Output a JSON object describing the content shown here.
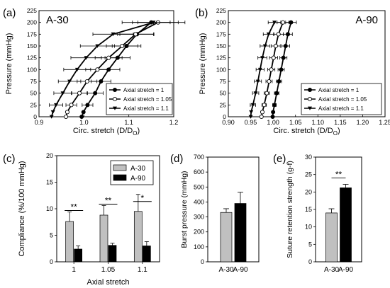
{
  "chart_data": [
    {
      "panel": "(a)",
      "type": "scatter",
      "title": "A-30",
      "xlabel": "Circ. stretch (D/D",
      "xlabel_sub": "O",
      "xlabel_close": ")",
      "ylabel": "Pressure (mmHg)",
      "xlim": [
        0.9,
        1.2
      ],
      "ylim": [
        0,
        225
      ],
      "xticks": [
        "0.9",
        "1.0",
        "1.1",
        "1.2"
      ],
      "yticks": [
        "0",
        "25",
        "50",
        "75",
        "100",
        "125",
        "150",
        "175",
        "200",
        "225"
      ],
      "legend_position": "bottom-right",
      "series": [
        {
          "name": "Axial stretch = 1",
          "marker": "filled-circle",
          "points": [
            [
              0.995,
              0
            ],
            [
              0.999,
              10
            ],
            [
              1.008,
              25
            ],
            [
              1.025,
              50
            ],
            [
              1.038,
              75
            ],
            [
              1.055,
              100
            ],
            [
              1.075,
              125
            ],
            [
              1.095,
              150
            ],
            [
              1.118,
              175
            ],
            [
              1.15,
              200
            ]
          ],
          "xerr": [
            0,
            0,
            0.012,
            0.018,
            0.022,
            0.025,
            0.028,
            0.032,
            0.038,
            0.042
          ]
        },
        {
          "name": "Axial stretch = 1.05",
          "marker": "open-circle",
          "points": [
            [
              0.96,
              0
            ],
            [
              0.963,
              10
            ],
            [
              0.972,
              25
            ],
            [
              0.99,
              50
            ],
            [
              1.007,
              75
            ],
            [
              1.03,
              100
            ],
            [
              1.055,
              125
            ],
            [
              1.085,
              150
            ],
            [
              1.115,
              175
            ],
            [
              1.165,
              200
            ]
          ],
          "xerr": [
            0,
            0,
            0.012,
            0.018,
            0.022,
            0.026,
            0.03,
            0.035,
            0.04,
            0.045
          ]
        },
        {
          "name": "Axial stretch = 1.1",
          "marker": "filled-triangle-down",
          "points": [
            [
              0.928,
              0
            ],
            [
              0.931,
              10
            ],
            [
              0.938,
              25
            ],
            [
              0.953,
              50
            ],
            [
              0.968,
              75
            ],
            [
              0.985,
              100
            ],
            [
              1.005,
              125
            ],
            [
              1.03,
              150
            ],
            [
              1.065,
              175
            ],
            [
              1.155,
              200
            ]
          ],
          "xerr": [
            0,
            0,
            0.015,
            0.02,
            0.025,
            0.03,
            0.034,
            0.038,
            0.045,
            0.07
          ]
        }
      ]
    },
    {
      "panel": "(b)",
      "type": "scatter",
      "title": "A-90",
      "xlabel": "Circ. stretch (D/D",
      "xlabel_sub": "O",
      "xlabel_close": ")",
      "ylabel": "Pressure (mmHg)",
      "xlim": [
        0.9,
        1.25
      ],
      "ylim": [
        0,
        225
      ],
      "xticks": [
        "0.90",
        "0.95",
        "1.00",
        "1.05",
        "1.10",
        "1.15",
        "1.20",
        "1.25"
      ],
      "yticks": [
        "0",
        "25",
        "50",
        "75",
        "100",
        "125",
        "150",
        "175",
        "200",
        "225"
      ],
      "legend_position": "bottom-right",
      "series": [
        {
          "name": "Axial stretch = 1",
          "marker": "filled-circle",
          "points": [
            [
              0.999,
              0
            ],
            [
              1.0,
              10
            ],
            [
              1.003,
              25
            ],
            [
              1.008,
              50
            ],
            [
              1.013,
              75
            ],
            [
              1.018,
              100
            ],
            [
              1.023,
              125
            ],
            [
              1.028,
              150
            ],
            [
              1.033,
              175
            ],
            [
              1.04,
              200
            ]
          ],
          "xerr": [
            0,
            0,
            0.004,
            0.005,
            0.006,
            0.007,
            0.008,
            0.009,
            0.01,
            0.012
          ]
        },
        {
          "name": "Axial stretch = 1.05",
          "marker": "open-circle",
          "points": [
            [
              0.974,
              0
            ],
            [
              0.976,
              10
            ],
            [
              0.98,
              25
            ],
            [
              0.986,
              50
            ],
            [
              0.991,
              75
            ],
            [
              0.996,
              100
            ],
            [
              1.001,
              125
            ],
            [
              1.006,
              150
            ],
            [
              1.012,
              175
            ],
            [
              1.022,
              200
            ]
          ],
          "xerr": [
            0,
            0,
            0.005,
            0.006,
            0.007,
            0.008,
            0.009,
            0.01,
            0.011,
            0.013
          ]
        },
        {
          "name": "Axial stretch = 1.1",
          "marker": "filled-triangle-down",
          "points": [
            [
              0.95,
              0
            ],
            [
              0.951,
              10
            ],
            [
              0.955,
              25
            ],
            [
              0.961,
              50
            ],
            [
              0.966,
              75
            ],
            [
              0.971,
              100
            ],
            [
              0.976,
              125
            ],
            [
              0.982,
              150
            ],
            [
              0.99,
              175
            ],
            [
              1.003,
              200
            ]
          ],
          "xerr": [
            0,
            0,
            0.006,
            0.007,
            0.008,
            0.009,
            0.01,
            0.011,
            0.012,
            0.014
          ]
        }
      ]
    },
    {
      "panel": "(c)",
      "type": "bar",
      "xlabel": "Axial stretch",
      "ylabel": "Compliance (%/100 mmHg)",
      "categories": [
        "1",
        "1.05",
        "1.1"
      ],
      "ylim": [
        0,
        20
      ],
      "yticks": [
        "0",
        "5",
        "10",
        "15",
        "20"
      ],
      "legend_position": "top-right",
      "series": [
        {
          "name": "A-30",
          "color": "#c0c0c0",
          "values": [
            7.6,
            8.8,
            9.5
          ],
          "errors": [
            1.8,
            1.8,
            3.2
          ]
        },
        {
          "name": "A-90",
          "color": "#000000",
          "values": [
            2.4,
            3.1,
            3.0
          ],
          "errors": [
            0.6,
            0.4,
            0.8
          ]
        }
      ],
      "significance": [
        "**",
        "**",
        "*"
      ]
    },
    {
      "panel": "(d)",
      "type": "bar",
      "ylabel": "Burst pressure (mmHg)",
      "categories": [
        "A-30",
        "A-90"
      ],
      "ylim": [
        0,
        700
      ],
      "yticks": [
        "0",
        "100",
        "200",
        "300",
        "400",
        "500",
        "600",
        "700"
      ],
      "values": [
        330,
        390
      ],
      "errors": [
        25,
        75
      ],
      "colors": [
        "#c0c0c0",
        "#000000"
      ]
    },
    {
      "panel": "(e)",
      "type": "bar",
      "ylabel": "Suture retention strength (g-f)",
      "categories": [
        "A-30",
        "A-90"
      ],
      "ylim": [
        0,
        30
      ],
      "yticks": [
        "0",
        "5",
        "10",
        "15",
        "20",
        "25",
        "30"
      ],
      "values": [
        14.0,
        21.2
      ],
      "errors": [
        1.2,
        1.0
      ],
      "colors": [
        "#c0c0c0",
        "#000000"
      ],
      "significance": "**"
    }
  ]
}
